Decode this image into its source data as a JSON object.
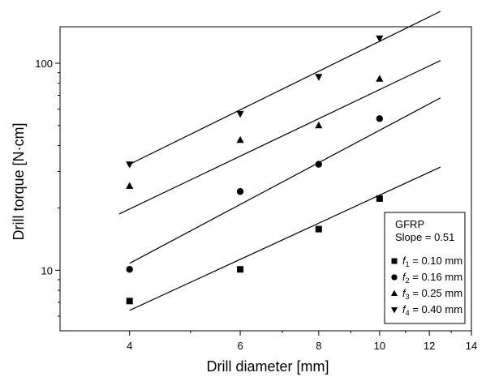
{
  "chart_data": {
    "type": "scatter",
    "xlabel": "Drill diameter [mm]",
    "ylabel": "Drill torque [N·cm]",
    "x_scale": "log",
    "y_scale": "log",
    "xlim": [
      3.1,
      14
    ],
    "ylim": [
      5.1,
      150
    ],
    "x_ticks": [
      4,
      6,
      8,
      10,
      12,
      14
    ],
    "y_major_ticks": [
      10,
      100
    ],
    "grid": false,
    "legend": {
      "placement": "bottom-right",
      "title_lines": [
        "GFRP",
        "Slope = 0.51"
      ]
    },
    "series": [
      {
        "name": "f1 = 0.10 mm",
        "label_var": "f",
        "label_sub": "1",
        "label_rest": " = 0.10 mm",
        "marker": "square",
        "x": [
          4,
          6,
          8,
          10
        ],
        "y": [
          7.1,
          10.1,
          15.8,
          22.2
        ],
        "fit": {
          "x": [
            4,
            12.5
          ],
          "y": [
            6.4,
            31.5
          ]
        }
      },
      {
        "name": "f2 = 0.16 mm",
        "label_var": "f",
        "label_sub": "2",
        "label_rest": " = 0.16 mm",
        "marker": "circle",
        "x": [
          4,
          6,
          8,
          10
        ],
        "y": [
          10.1,
          24,
          32.5,
          54
        ],
        "fit": {
          "x": [
            4,
            12.5
          ],
          "y": [
            10.8,
            68
          ]
        }
      },
      {
        "name": "f3 = 0.25 mm",
        "label_var": "f",
        "label_sub": "3",
        "label_rest": " = 0.25 mm",
        "marker": "triangle-up",
        "x": [
          4,
          6,
          8,
          10
        ],
        "y": [
          25.5,
          42.5,
          50,
          84
        ],
        "fit": {
          "x": [
            3.85,
            12.5
          ],
          "y": [
            18.7,
            103
          ]
        }
      },
      {
        "name": "f4 = 0.40 mm",
        "label_var": "f",
        "label_sub": "4",
        "label_rest": " = 0.40 mm",
        "marker": "triangle-down",
        "x": [
          4,
          6,
          8,
          10
        ],
        "y": [
          32.5,
          57,
          86,
          132
        ],
        "fit": {
          "x": [
            4,
            12.5
          ],
          "y": [
            32.5,
            178
          ]
        }
      }
    ]
  }
}
